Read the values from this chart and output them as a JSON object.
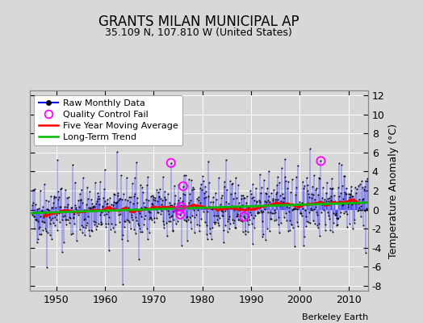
{
  "title": "GRANTS MILAN MUNICIPAL AP",
  "subtitle": "35.109 N, 107.810 W (United States)",
  "ylabel_right": "Temperature Anomaly (°C)",
  "attribution": "Berkeley Earth",
  "year_start": 1945,
  "year_end": 2015,
  "ylim": [
    -8.5,
    12.5
  ],
  "yticks": [
    -8,
    -6,
    -4,
    -2,
    0,
    2,
    4,
    6,
    8,
    10,
    12
  ],
  "xticks": [
    1950,
    1960,
    1970,
    1980,
    1990,
    2000,
    2010
  ],
  "bg_color": "#d8d8d8",
  "plot_bg_color": "#d8d8d8",
  "raw_color": "#0000ff",
  "ma_color": "#ff0000",
  "trend_color": "#00bb00",
  "qc_color": "#ff00ff",
  "dot_color": "#000000",
  "legend_raw": "Raw Monthly Data",
  "legend_qc": "Quality Control Fail",
  "legend_ma": "Five Year Moving Average",
  "legend_trend": "Long-Term Trend",
  "title_fontsize": 12,
  "subtitle_fontsize": 9,
  "axis_fontsize": 9,
  "legend_fontsize": 8,
  "seed": 42
}
